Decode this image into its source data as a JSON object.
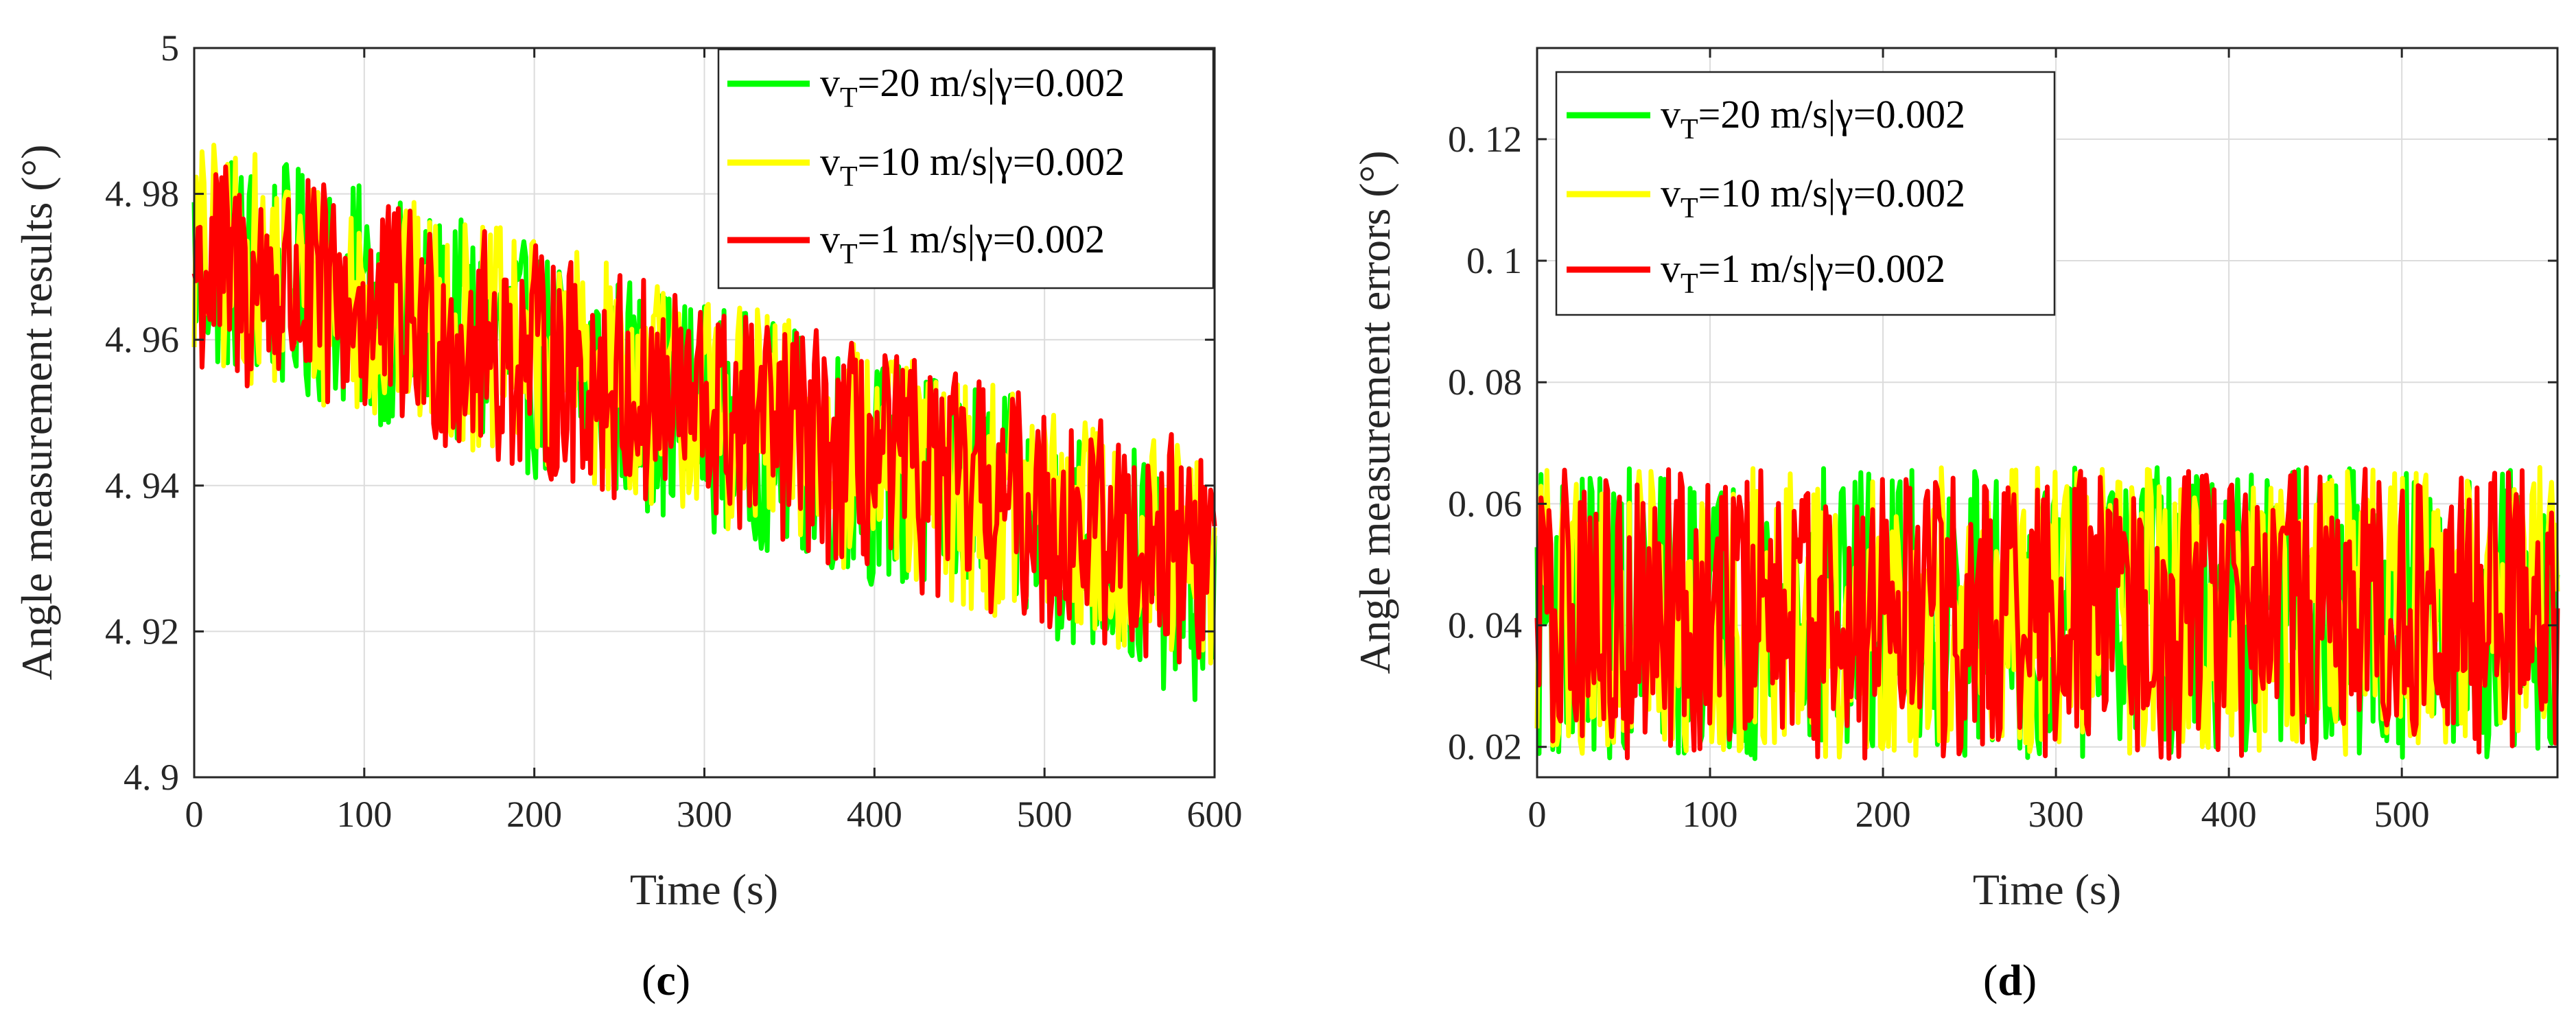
{
  "chart_data": [
    {
      "type": "line",
      "panel_label": "(c)",
      "panel_letter": "c",
      "xlabel": "Time (s)",
      "ylabel": "Angle measurement results (°)",
      "xlim": [
        0,
        600
      ],
      "ylim": [
        4.9,
        5.0
      ],
      "xticks": [
        "0",
        "100",
        "200",
        "300",
        "400",
        "500",
        "600"
      ],
      "yticks": [
        "4. 9",
        "4. 92",
        "4. 94",
        "4. 96",
        "4. 98",
        "5"
      ],
      "grid": true,
      "legend_position": "top-right",
      "noise_amplitude": 0.016,
      "series": [
        {
          "name": "vT=20 m/s|γ=0.002",
          "name_main": "v",
          "name_sub": "T",
          "name_rest": "=20 m/s|γ=0.002",
          "color": "#00ff00",
          "x": [
            0,
            100,
            200,
            300,
            400,
            500,
            600
          ],
          "y": [
            4.972,
            4.965,
            4.957,
            4.95,
            4.942,
            4.935,
            4.925
          ]
        },
        {
          "name": "vT=10 m/s|γ=0.002",
          "name_main": "v",
          "name_sub": "T",
          "name_rest": "=10 m/s|γ=0.002",
          "color": "#ffff00",
          "x": [
            0,
            100,
            200,
            300,
            400,
            500,
            600
          ],
          "y": [
            4.972,
            4.965,
            4.958,
            4.951,
            4.943,
            4.936,
            4.928
          ]
        },
        {
          "name": "vT=1 m/s|γ=0.002",
          "name_main": "v",
          "name_sub": "T",
          "name_rest": "=1 m/s|γ=0.002",
          "color": "#ff0000",
          "x": [
            0,
            100,
            200,
            300,
            400,
            500,
            600
          ],
          "y": [
            4.97,
            4.964,
            4.957,
            4.95,
            4.943,
            4.936,
            4.93
          ]
        }
      ]
    },
    {
      "type": "line",
      "panel_label": "(d)",
      "panel_letter": "d",
      "xlabel": "Time (s)",
      "ylabel": "Angle measurement errors (°)",
      "xlim": [
        0,
        590
      ],
      "ylim": [
        0.015,
        0.135
      ],
      "xticks": [
        "0",
        "100",
        "200",
        "300",
        "400",
        "500"
      ],
      "yticks": [
        "0. 02",
        "0. 04",
        "0. 06",
        "0. 08",
        "0. 1",
        "0. 12"
      ],
      "grid": true,
      "legend_position": "top-left",
      "noise_amplitude": 0.024,
      "series": [
        {
          "name": "vT=20 m/s|γ=0.002",
          "name_main": "v",
          "name_sub": "T",
          "name_rest": "=20 m/s|γ=0.002",
          "color": "#00ff00",
          "x": [
            0,
            590
          ],
          "y": [
            0.042,
            0.042
          ]
        },
        {
          "name": "vT=10 m/s|γ=0.002",
          "name_main": "v",
          "name_sub": "T",
          "name_rest": "=10 m/s|γ=0.002",
          "color": "#ffff00",
          "x": [
            0,
            590
          ],
          "y": [
            0.042,
            0.042
          ]
        },
        {
          "name": "vT=1 m/s|γ=0.002",
          "name_main": "v",
          "name_sub": "T",
          "name_rest": "=1 m/s|γ=0.002",
          "color": "#ff0000",
          "x": [
            0,
            590
          ],
          "y": [
            0.042,
            0.042
          ]
        }
      ]
    }
  ]
}
